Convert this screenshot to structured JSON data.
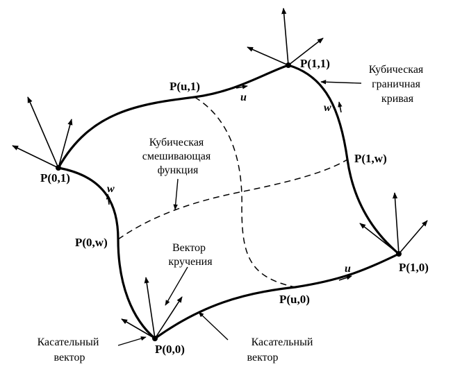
{
  "points": {
    "p00": "P(0,0)",
    "p10": "P(1,0)",
    "p01": "P(0,1)",
    "p11": "P(1,1)",
    "pu0": "P(u,0)",
    "pu1": "P(u,1)",
    "p0w": "P(0,w)",
    "p1w": "P(1,w)"
  },
  "parameters": {
    "u_bottom": "u",
    "u_top": "u",
    "w_left": "w",
    "w_right": "w"
  },
  "labels": {
    "boundary_curve": [
      "Кубическая",
      "граничная",
      "кривая"
    ],
    "blending_function": [
      "Кубическая",
      "смешивающая",
      "функция"
    ],
    "twist_vector": [
      "Вектор",
      "кручения"
    ],
    "tangent_left": [
      "Касательный",
      "вектор"
    ],
    "tangent_right": [
      "Касательный",
      "вектор"
    ]
  }
}
